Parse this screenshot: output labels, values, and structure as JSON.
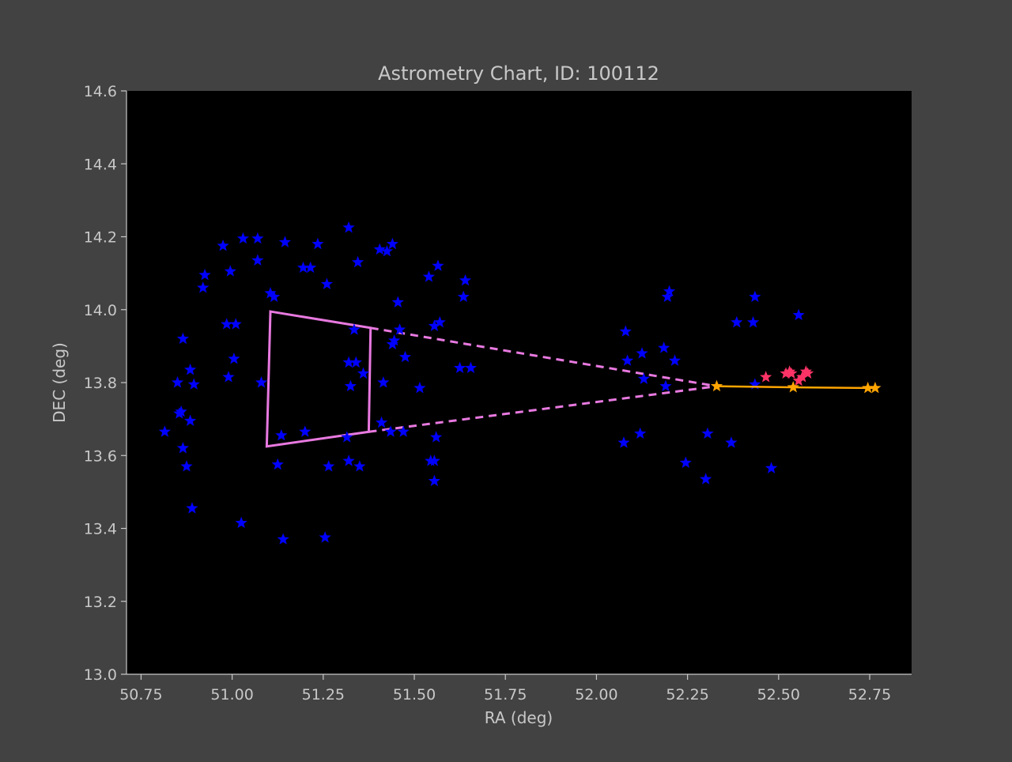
{
  "chart_data": {
    "type": "scatter",
    "title": "Astrometry Chart, ID: 100112",
    "xlabel": "RA (deg)",
    "ylabel": "DEC (deg)",
    "xlim": [
      50.71,
      52.865
    ],
    "ylim": [
      13.0,
      14.6
    ],
    "xticks": [
      "50.75",
      "51.00",
      "51.25",
      "51.50",
      "51.75",
      "52.00",
      "52.25",
      "52.50",
      "52.75"
    ],
    "yticks": [
      "13.0",
      "13.2",
      "13.4",
      "13.6",
      "13.8",
      "14.0",
      "14.2",
      "14.4",
      "14.6"
    ],
    "grid": false,
    "colors": {
      "background": "#424242",
      "plot_area": "#000000",
      "stars": "#0000ff",
      "highlight": "#ff3366",
      "track": "#ffa500",
      "fov": "#e879e0",
      "text": "#c8c8c8"
    },
    "series": [
      {
        "marker": "star",
        "color": "#0000ff",
        "points": [
          [
            50.815,
            13.665
          ],
          [
            50.85,
            13.8
          ],
          [
            50.855,
            13.715
          ],
          [
            50.86,
            13.72
          ],
          [
            50.865,
            13.62
          ],
          [
            50.865,
            13.92
          ],
          [
            50.875,
            13.57
          ],
          [
            50.885,
            13.835
          ],
          [
            50.885,
            13.695
          ],
          [
            50.89,
            13.455
          ],
          [
            50.895,
            13.795
          ],
          [
            50.92,
            14.06
          ],
          [
            50.925,
            14.095
          ],
          [
            50.975,
            14.175
          ],
          [
            50.985,
            13.96
          ],
          [
            50.99,
            13.815
          ],
          [
            50.995,
            14.105
          ],
          [
            51.005,
            13.865
          ],
          [
            51.01,
            13.96
          ],
          [
            51.025,
            13.415
          ],
          [
            51.03,
            14.195
          ],
          [
            51.07,
            14.195
          ],
          [
            51.07,
            14.135
          ],
          [
            51.08,
            13.8
          ],
          [
            51.105,
            14.045
          ],
          [
            51.115,
            14.035
          ],
          [
            51.125,
            13.575
          ],
          [
            51.135,
            13.655
          ],
          [
            51.14,
            13.37
          ],
          [
            51.145,
            14.185
          ],
          [
            51.195,
            14.115
          ],
          [
            51.2,
            13.665
          ],
          [
            51.215,
            14.115
          ],
          [
            51.235,
            14.18
          ],
          [
            51.255,
            13.375
          ],
          [
            51.26,
            14.07
          ],
          [
            51.265,
            13.57
          ],
          [
            51.315,
            13.65
          ],
          [
            51.32,
            14.225
          ],
          [
            51.32,
            13.585
          ],
          [
            51.32,
            13.855
          ],
          [
            51.325,
            13.79
          ],
          [
            51.335,
            13.945
          ],
          [
            51.34,
            13.855
          ],
          [
            51.345,
            14.13
          ],
          [
            51.35,
            13.57
          ],
          [
            51.36,
            13.825
          ],
          [
            51.405,
            14.165
          ],
          [
            51.41,
            13.69
          ],
          [
            51.415,
            13.8
          ],
          [
            51.425,
            14.16
          ],
          [
            51.435,
            13.665
          ],
          [
            51.44,
            14.18
          ],
          [
            51.44,
            13.905
          ],
          [
            51.445,
            13.915
          ],
          [
            51.455,
            14.02
          ],
          [
            51.46,
            13.945
          ],
          [
            51.47,
            13.665
          ],
          [
            51.475,
            13.87
          ],
          [
            51.515,
            13.785
          ],
          [
            51.54,
            14.09
          ],
          [
            51.545,
            13.585
          ],
          [
            51.555,
            13.53
          ],
          [
            51.555,
            13.955
          ],
          [
            51.555,
            13.585
          ],
          [
            51.56,
            13.65
          ],
          [
            51.565,
            14.12
          ],
          [
            51.57,
            13.965
          ],
          [
            51.625,
            13.84
          ],
          [
            51.635,
            14.035
          ],
          [
            51.64,
            14.08
          ],
          [
            51.655,
            13.84
          ],
          [
            52.075,
            13.635
          ],
          [
            52.08,
            13.94
          ],
          [
            52.085,
            13.86
          ],
          [
            52.12,
            13.66
          ],
          [
            52.125,
            13.88
          ],
          [
            52.13,
            13.81
          ],
          [
            52.185,
            13.895
          ],
          [
            52.19,
            13.79
          ],
          [
            52.195,
            14.035
          ],
          [
            52.2,
            14.05
          ],
          [
            52.215,
            13.86
          ],
          [
            52.245,
            13.58
          ],
          [
            52.3,
            13.535
          ],
          [
            52.305,
            13.66
          ],
          [
            52.37,
            13.635
          ],
          [
            52.385,
            13.965
          ],
          [
            52.43,
            13.965
          ],
          [
            52.435,
            13.795
          ],
          [
            52.435,
            14.035
          ],
          [
            52.48,
            13.565
          ],
          [
            52.555,
            13.985
          ]
        ]
      },
      {
        "marker": "star",
        "color": "#ff3366",
        "points": [
          [
            52.465,
            13.815
          ],
          [
            52.52,
            13.825
          ],
          [
            52.53,
            13.83
          ],
          [
            52.535,
            13.825
          ],
          [
            52.555,
            13.805
          ],
          [
            52.565,
            13.815
          ],
          [
            52.575,
            13.83
          ],
          [
            52.58,
            13.825
          ]
        ]
      },
      {
        "marker": "star-line",
        "color": "#ffa500",
        "points": [
          [
            52.33,
            13.79
          ],
          [
            52.54,
            13.787
          ],
          [
            52.745,
            13.785
          ],
          [
            52.765,
            13.785
          ]
        ]
      }
    ],
    "fov_box": [
      [
        51.105,
        13.995
      ],
      [
        51.38,
        13.95
      ],
      [
        51.375,
        13.665
      ],
      [
        51.095,
        13.625
      ]
    ],
    "fov_lines_to": [
      52.33,
      13.79
    ]
  }
}
